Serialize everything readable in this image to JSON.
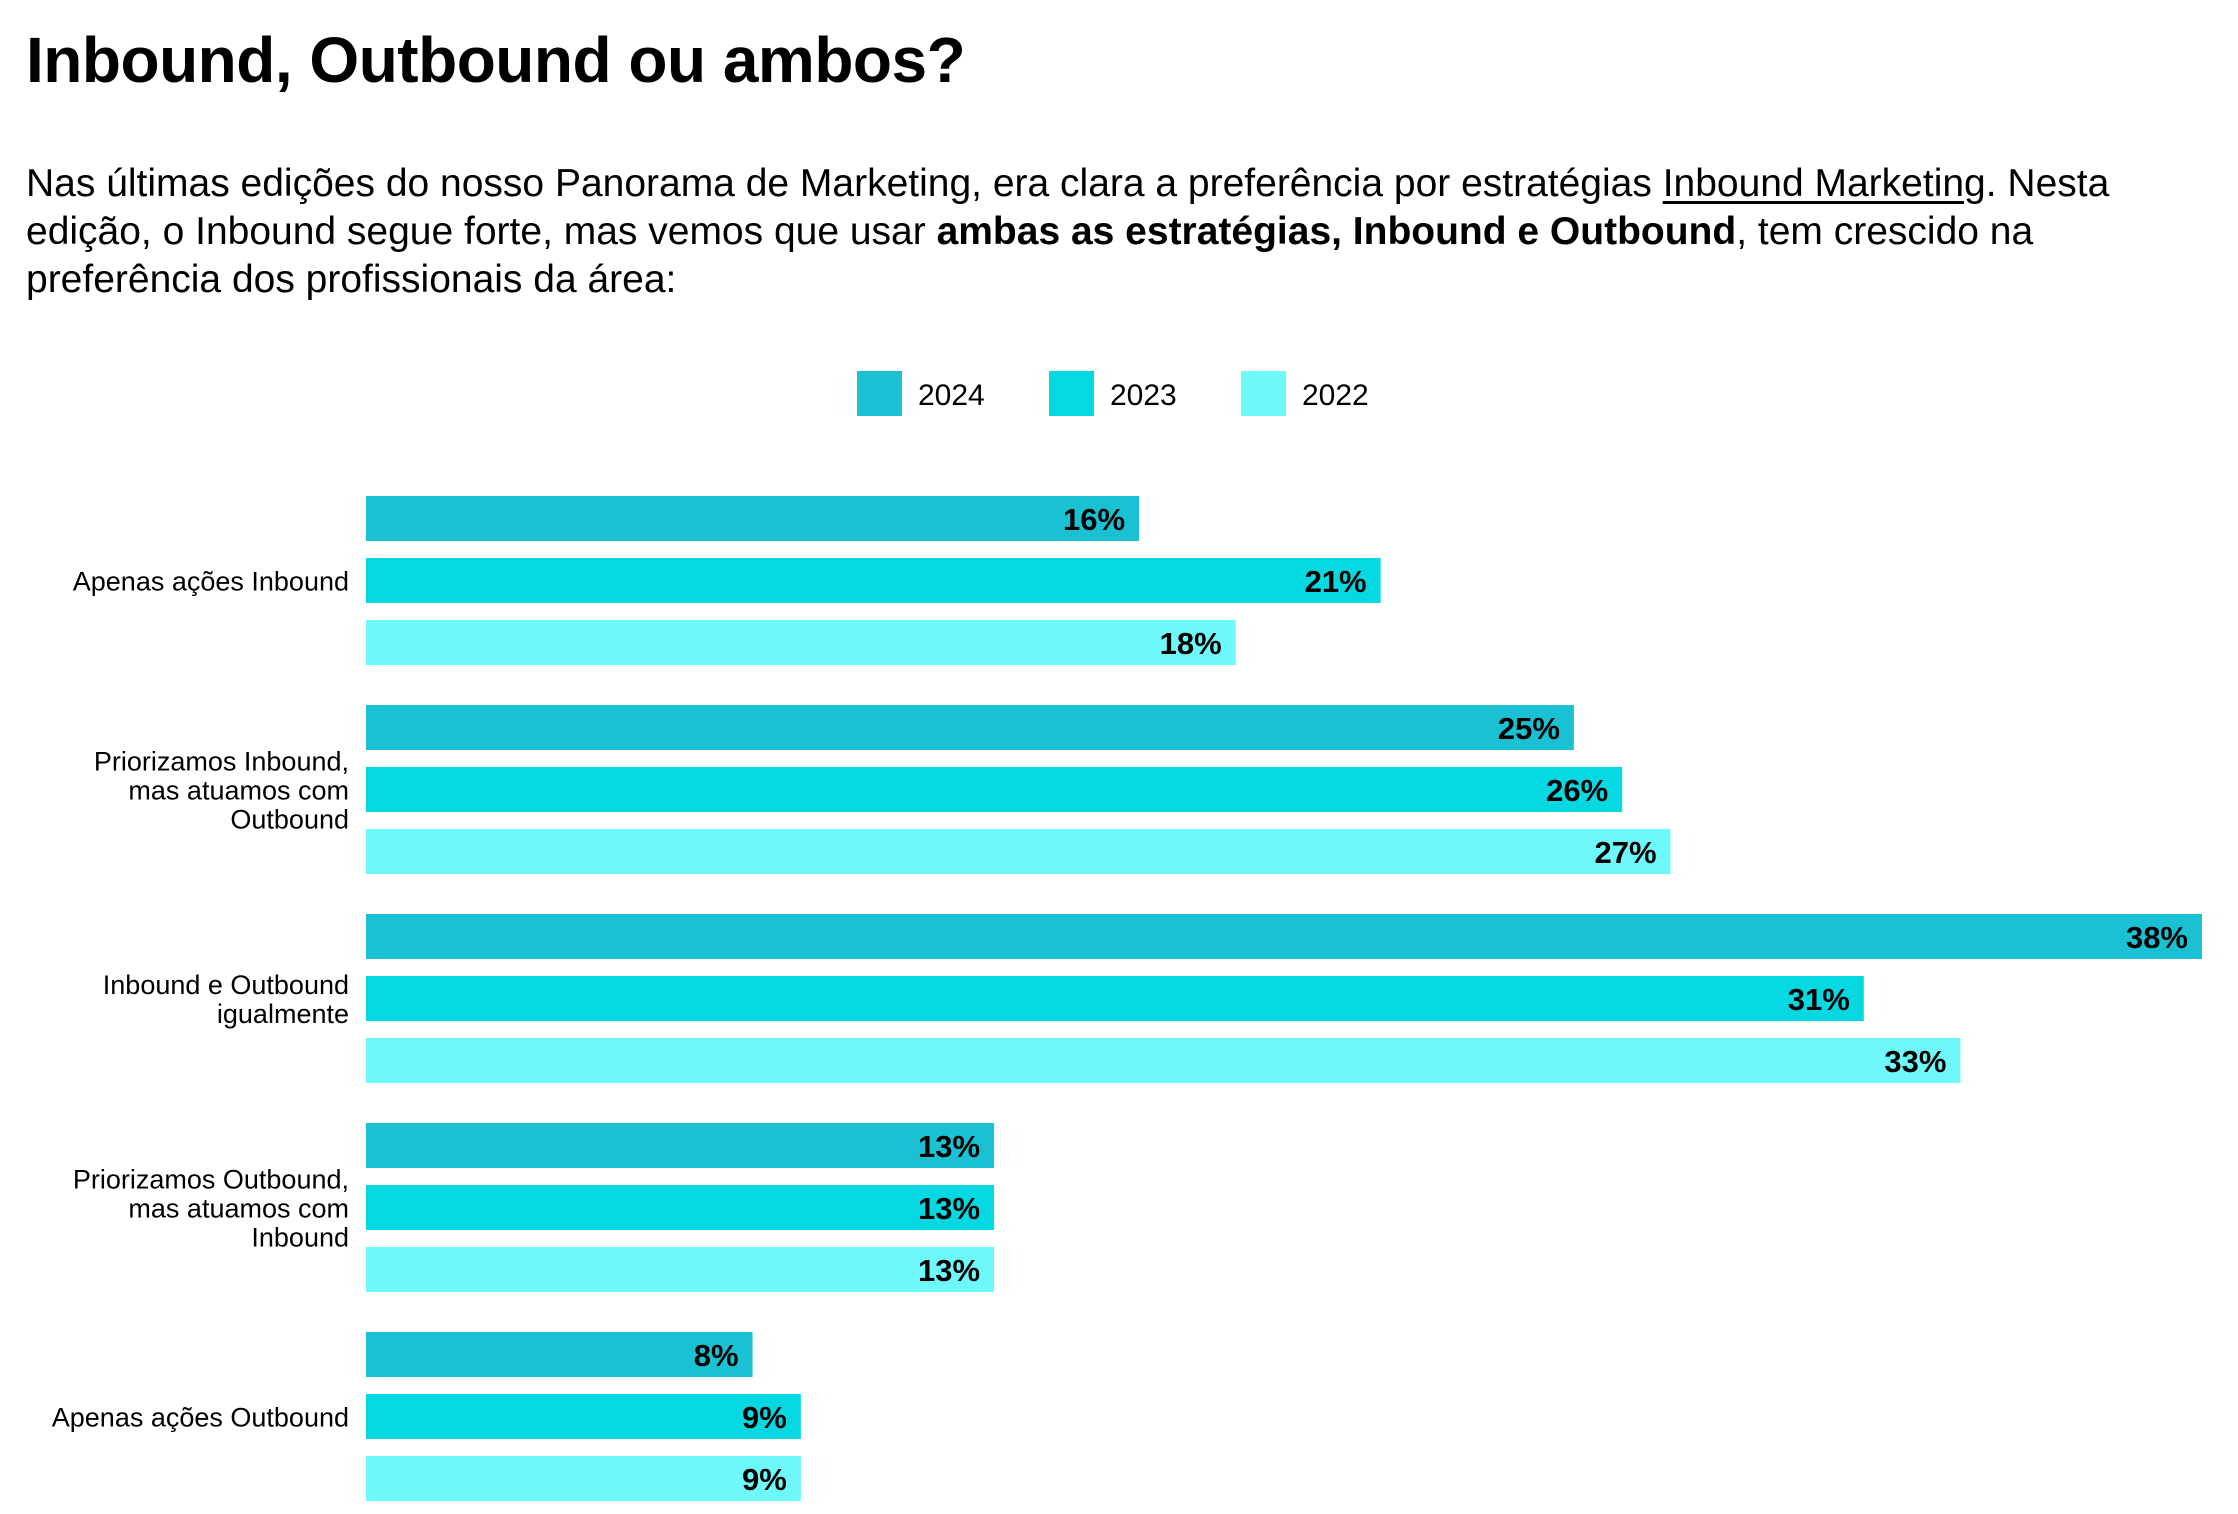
{
  "header": {
    "title": "Inbound, Outbound ou ambos?"
  },
  "intro": {
    "part1": "Nas últimas edições do nosso Panorama de Marketing, era clara a preferência por estratégias ",
    "link": "Inbound Marketing",
    "part2": ". Nesta edição, o Inbound segue forte, mas vemos que usar ",
    "bold": "ambas as estratégias, Inbound e Outbound",
    "part3": ", tem crescido na preferência dos profissionais da área:"
  },
  "colors": {
    "series_2024": "#1ac1d3",
    "series_2023": "#06d8e2",
    "series_2022": "#6ef8fa",
    "text": "#000000",
    "background": "#ffffff"
  },
  "chart_data": {
    "type": "bar",
    "orientation": "horizontal",
    "title": "",
    "xlabel": "",
    "ylabel": "",
    "xlim": [
      0,
      38
    ],
    "grid": false,
    "legend_position": "top-center",
    "value_suffix": "%",
    "categories": [
      [
        "Apenas ações Inbound"
      ],
      [
        "Priorizamos Inbound,",
        "mas atuamos com",
        "Outbound"
      ],
      [
        "Inbound e Outbound",
        "igualmente"
      ],
      [
        "Priorizamos Outbound,",
        "mas atuamos com",
        "Inbound"
      ],
      [
        "Apenas ações Outbound"
      ]
    ],
    "series": [
      {
        "name": "2024",
        "color": "#1ac1d3",
        "values": [
          16,
          25,
          38,
          13,
          8
        ]
      },
      {
        "name": "2023",
        "color": "#06d8e2",
        "values": [
          21,
          26,
          31,
          13,
          9
        ]
      },
      {
        "name": "2022",
        "color": "#6ef8fa",
        "values": [
          18,
          27,
          33,
          13,
          9
        ]
      }
    ]
  }
}
